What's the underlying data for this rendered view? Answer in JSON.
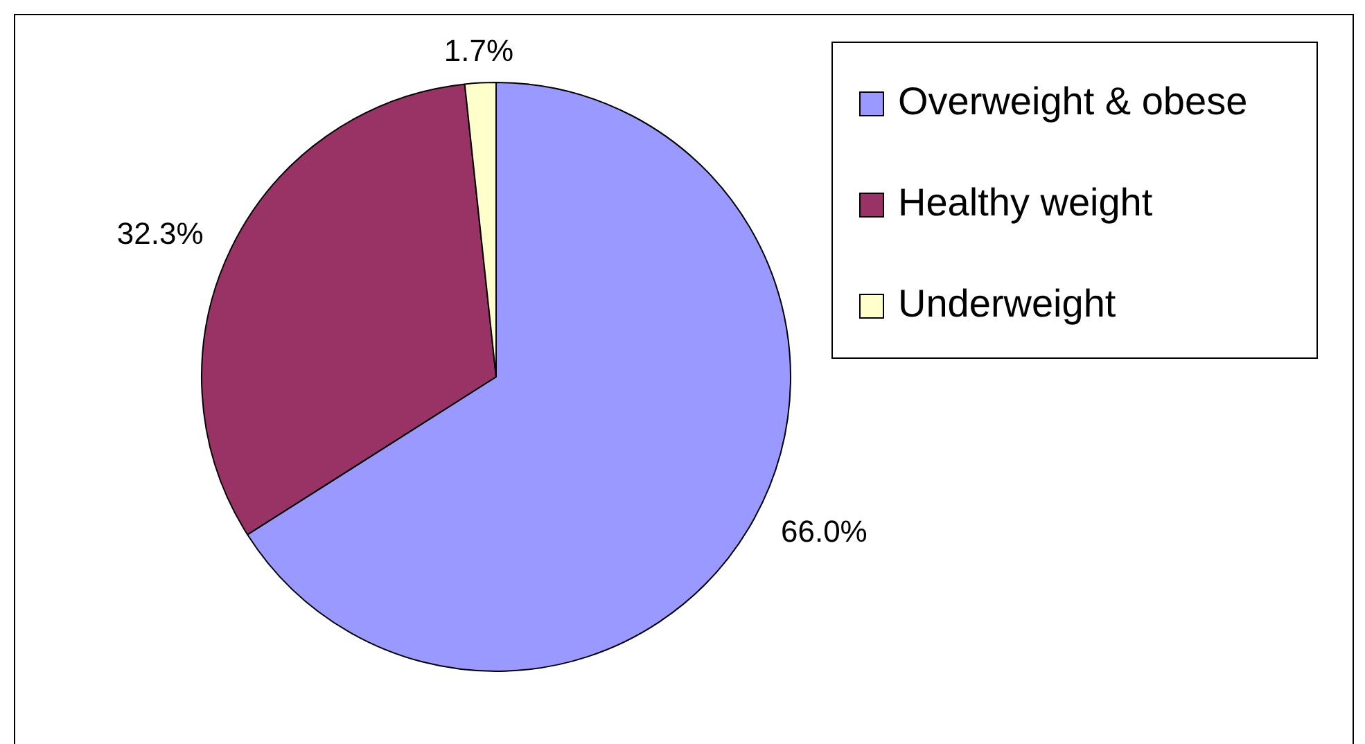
{
  "chart_data": {
    "type": "pie",
    "categories": [
      "Overweight & obese",
      "Healthy weight",
      "Underweight"
    ],
    "values": [
      66.0,
      32.3,
      1.7
    ],
    "value_labels": [
      "66.0%",
      "32.3%",
      "1.7%"
    ],
    "colors": [
      "#9999ff",
      "#993366",
      "#ffffcc"
    ],
    "legend": "top right"
  }
}
